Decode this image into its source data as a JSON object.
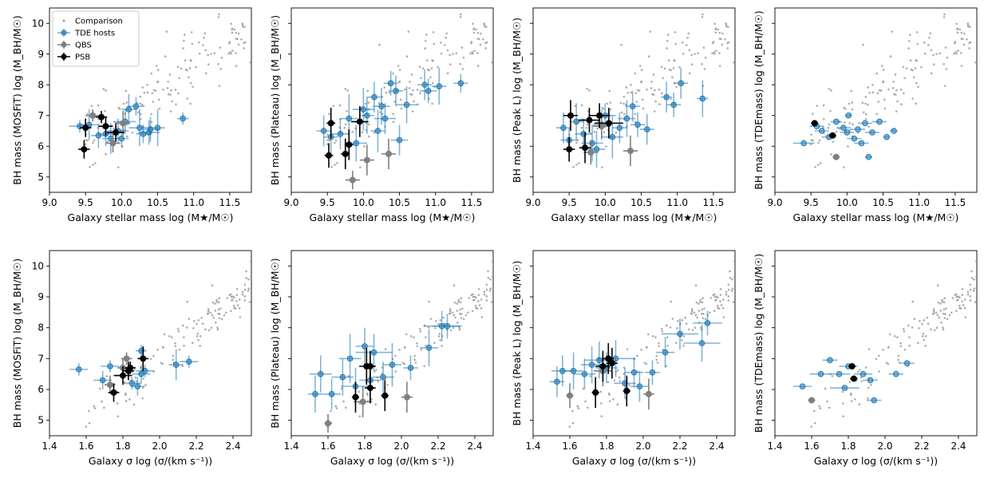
{
  "colors": {
    "comparison": "#999999",
    "tde": "#1f77b4",
    "qbs": "#808080",
    "psb": "#000000"
  },
  "legend": {
    "comparison": "Comparison",
    "tde": "TDE hosts",
    "qbs": "QBS",
    "psb": "PSB"
  },
  "axes": {
    "xlabel_mass": "Galaxy stellar mass log (M★/M☉)",
    "xlabel_sigma": "Galaxy σ log (σ/(km s⁻¹))",
    "ylabel_left": [
      "BH mass (MOSFiT) log (M_BH/M☉)",
      "BH mass (Plateau) log (M_BH/M☉)",
      "BH mass (Peak L) log (M_BH/M☉)",
      "BH mass (TDEmass) log (M_BH/M☉)"
    ]
  },
  "chart_data": [
    {
      "type": "scatter",
      "panel": "top-1",
      "xkey": "mass",
      "xlim": [
        9.0,
        11.8
      ],
      "ylim": [
        4.5,
        10.5
      ],
      "xticks": [
        "9.0",
        "9.5",
        "10.0",
        "10.5",
        "11.0",
        "11.5"
      ],
      "yticks": [
        "5",
        "6",
        "7",
        "8",
        "9",
        "10"
      ],
      "xlabel": "Galaxy stellar mass log (M★/M☉)",
      "ylabel": "BH mass (MOSFiT) log (M_BH/M☉)",
      "legend": "top-left",
      "tde": [
        [
          9.42,
          6.65,
          0.15,
          0.2
        ],
        [
          9.55,
          6.7,
          0.12,
          0.5
        ],
        [
          9.68,
          6.35,
          0.1,
          0.4
        ],
        [
          9.85,
          6.25,
          0.12,
          0.5
        ],
        [
          9.95,
          6.5,
          0.15,
          0.4
        ],
        [
          10.0,
          6.25,
          0.1,
          0.3
        ],
        [
          10.05,
          6.8,
          0.15,
          0.4
        ],
        [
          10.1,
          7.2,
          0.1,
          0.5
        ],
        [
          10.2,
          7.3,
          0.12,
          0.3
        ],
        [
          10.25,
          6.6,
          0.15,
          0.6
        ],
        [
          10.3,
          6.4,
          0.1,
          0.3
        ],
        [
          10.4,
          6.55,
          0.12,
          0.4
        ],
        [
          10.5,
          6.6,
          0.1,
          0.6
        ],
        [
          10.85,
          6.9,
          0.08,
          0.2
        ],
        [
          10.38,
          6.45,
          0.15,
          0.4
        ],
        [
          9.78,
          6.4,
          0.1,
          0.4
        ]
      ],
      "qbs": [
        [
          9.6,
          7.0,
          0.1,
          0.2
        ],
        [
          10.02,
          6.75,
          0.1,
          0.4
        ],
        [
          9.88,
          6.1,
          0.1,
          0.3
        ]
      ],
      "psb": [
        [
          9.5,
          6.6,
          0.08,
          0.3
        ],
        [
          9.48,
          5.9,
          0.08,
          0.3
        ],
        [
          9.72,
          6.95,
          0.08,
          0.2
        ],
        [
          9.78,
          6.65,
          0.1,
          0.3
        ],
        [
          9.92,
          6.45,
          0.12,
          0.3
        ]
      ]
    },
    {
      "type": "scatter",
      "panel": "top-2",
      "xkey": "mass",
      "xlim": [
        9.0,
        11.8
      ],
      "ylim": [
        4.5,
        10.5
      ],
      "xticks": [
        "9.0",
        "9.5",
        "10.0",
        "10.5",
        "11.0",
        "11.5"
      ],
      "yticks": [],
      "xlabel": "Galaxy stellar mass log (M★/M☉)",
      "ylabel": "BH mass (Plateau) log (M_BH/M☉)",
      "tde": [
        [
          9.45,
          6.5,
          0.1,
          0.5
        ],
        [
          9.55,
          6.3,
          0.1,
          0.6
        ],
        [
          9.68,
          6.4,
          0.12,
          0.5
        ],
        [
          9.8,
          6.9,
          0.12,
          0.8
        ],
        [
          9.9,
          6.1,
          0.15,
          0.6
        ],
        [
          10.0,
          7.2,
          0.15,
          0.7
        ],
        [
          10.05,
          7.0,
          0.1,
          0.6
        ],
        [
          10.15,
          7.6,
          0.1,
          0.5
        ],
        [
          10.25,
          7.3,
          0.12,
          0.6
        ],
        [
          10.3,
          6.9,
          0.15,
          0.5
        ],
        [
          10.38,
          8.05,
          0.1,
          0.4
        ],
        [
          10.45,
          7.8,
          0.1,
          0.5
        ],
        [
          10.6,
          7.35,
          0.15,
          0.6
        ],
        [
          10.85,
          8.0,
          0.1,
          0.5
        ],
        [
          10.9,
          7.8,
          0.12,
          0.4
        ],
        [
          11.05,
          7.95,
          0.1,
          0.6
        ],
        [
          11.35,
          8.05,
          0.1,
          0.3
        ],
        [
          10.5,
          6.2,
          0.12,
          0.5
        ],
        [
          10.2,
          6.5,
          0.1,
          0.7
        ]
      ],
      "qbs": [
        [
          9.85,
          4.9,
          0.1,
          0.3
        ],
        [
          10.05,
          5.55,
          0.1,
          0.5
        ],
        [
          10.35,
          5.75,
          0.1,
          0.5
        ]
      ],
      "psb": [
        [
          9.55,
          6.75,
          0.06,
          0.5
        ],
        [
          9.52,
          5.7,
          0.06,
          0.4
        ],
        [
          9.75,
          5.75,
          0.06,
          0.5
        ],
        [
          9.8,
          6.05,
          0.06,
          0.5
        ],
        [
          9.95,
          6.8,
          0.12,
          0.5
        ]
      ]
    },
    {
      "type": "scatter",
      "panel": "top-3",
      "xkey": "mass",
      "xlim": [
        9.0,
        11.8
      ],
      "ylim": [
        4.5,
        10.5
      ],
      "xticks": [
        "9.0",
        "9.5",
        "10.0",
        "10.5",
        "11.0",
        "11.5"
      ],
      "yticks": [],
      "xlabel": "Galaxy stellar mass log (M★/M☉)",
      "ylabel": "BH mass (Peak L) log (M_BH/M☉)",
      "tde": [
        [
          9.42,
          6.6,
          0.1,
          0.5
        ],
        [
          9.5,
          6.2,
          0.12,
          0.4
        ],
        [
          9.6,
          6.8,
          0.1,
          0.6
        ],
        [
          9.7,
          6.4,
          0.12,
          0.5
        ],
        [
          9.82,
          6.1,
          0.15,
          0.6
        ],
        [
          9.95,
          6.7,
          0.12,
          0.5
        ],
        [
          10.1,
          6.3,
          0.15,
          0.7
        ],
        [
          10.2,
          6.6,
          0.1,
          0.5
        ],
        [
          10.3,
          6.9,
          0.12,
          0.6
        ],
        [
          10.38,
          7.3,
          0.1,
          0.5
        ],
        [
          10.45,
          6.7,
          0.1,
          0.4
        ],
        [
          10.58,
          6.55,
          0.1,
          0.5
        ],
        [
          10.85,
          7.6,
          0.08,
          0.5
        ],
        [
          10.95,
          7.35,
          0.1,
          0.4
        ],
        [
          11.05,
          8.05,
          0.1,
          0.5
        ],
        [
          11.35,
          7.55,
          0.08,
          0.6
        ],
        [
          10.0,
          7.0,
          0.15,
          0.4
        ],
        [
          9.88,
          5.9,
          0.12,
          0.6
        ]
      ],
      "qbs": [
        [
          9.8,
          5.8,
          0.1,
          0.4
        ],
        [
          9.95,
          6.65,
          0.12,
          0.4
        ],
        [
          10.35,
          5.85,
          0.1,
          0.5
        ]
      ],
      "psb": [
        [
          9.52,
          7.0,
          0.1,
          0.5
        ],
        [
          9.5,
          5.9,
          0.08,
          0.4
        ],
        [
          9.72,
          5.95,
          0.08,
          0.5
        ],
        [
          9.78,
          6.85,
          0.15,
          0.4
        ],
        [
          9.92,
          7.0,
          0.15,
          0.4
        ],
        [
          10.05,
          6.75,
          0.2,
          0.5
        ]
      ]
    },
    {
      "type": "scatter",
      "panel": "top-4",
      "xkey": "mass",
      "xlim": [
        9.0,
        11.8
      ],
      "ylim": [
        4.5,
        10.5
      ],
      "xticks": [
        "9.0",
        "9.5",
        "10.0",
        "10.5",
        "11.0",
        "11.5"
      ],
      "yticks": [],
      "xlabel": "Galaxy stellar mass log (M★/M☉)",
      "ylabel": "BH mass (TDEmass) log (M_BH/M☉)",
      "tde": [
        [
          9.4,
          6.1,
          0.15,
          0
        ],
        [
          9.58,
          6.65,
          0.1,
          0
        ],
        [
          9.65,
          6.5,
          0.1,
          0
        ],
        [
          9.75,
          6.3,
          0.1,
          0
        ],
        [
          9.85,
          6.8,
          0.08,
          0
        ],
        [
          9.95,
          6.6,
          0.1,
          0
        ],
        [
          10.02,
          7.0,
          0.05,
          0
        ],
        [
          10.1,
          6.25,
          0.1,
          0
        ],
        [
          10.15,
          6.55,
          0.1,
          0
        ],
        [
          10.2,
          6.1,
          0.1,
          0
        ],
        [
          10.25,
          6.75,
          0.1,
          0
        ],
        [
          10.35,
          6.45,
          0.1,
          0
        ],
        [
          10.45,
          6.8,
          0.1,
          0
        ],
        [
          10.55,
          6.3,
          0.05,
          0
        ],
        [
          10.65,
          6.5,
          0.05,
          0
        ],
        [
          10.3,
          5.65,
          0.05,
          0
        ],
        [
          10.0,
          6.45,
          0.1,
          0
        ]
      ],
      "qbs": [
        [
          9.85,
          5.65,
          0.05,
          0
        ]
      ],
      "psb": [
        [
          9.55,
          6.75,
          0.05,
          0
        ],
        [
          9.8,
          6.35,
          0.05,
          0
        ]
      ]
    },
    {
      "type": "scatter",
      "panel": "bottom-1",
      "xkey": "sigma",
      "xlim": [
        1.4,
        2.5
      ],
      "ylim": [
        4.5,
        10.5
      ],
      "xticks": [
        "1.4",
        "1.6",
        "1.8",
        "2.0",
        "2.2",
        "2.4"
      ],
      "yticks": [
        "5",
        "6",
        "7",
        "8",
        "9",
        "10"
      ],
      "xlabel": "Galaxy σ log (σ/(km s⁻¹))",
      "ylabel": "BH mass (MOSFiT) log (M_BH/M☉)",
      "tde": [
        [
          1.56,
          6.65,
          0.05,
          0.2
        ],
        [
          1.69,
          6.3,
          0.05,
          0.3
        ],
        [
          1.73,
          6.75,
          0.05,
          0.2
        ],
        [
          1.85,
          6.2,
          0.05,
          0.2
        ],
        [
          1.9,
          7.25,
          0.03,
          0.2
        ],
        [
          1.9,
          6.5,
          0.05,
          0.3
        ],
        [
          1.92,
          6.6,
          0.05,
          0.2
        ],
        [
          2.09,
          6.8,
          0.04,
          0.5
        ],
        [
          2.16,
          6.9,
          0.05,
          0.2
        ],
        [
          1.88,
          6.1,
          0.04,
          0.3
        ]
      ],
      "qbs": [
        [
          1.73,
          6.15,
          0.03,
          0.3
        ],
        [
          1.8,
          6.7,
          0.03,
          0.3
        ],
        [
          1.82,
          7.0,
          0.03,
          0.2
        ]
      ],
      "psb": [
        [
          1.75,
          5.9,
          0.03,
          0.3
        ],
        [
          1.8,
          6.45,
          0.05,
          0.3
        ],
        [
          1.83,
          6.6,
          0.03,
          0.3
        ],
        [
          1.84,
          6.7,
          0.03,
          0.2
        ],
        [
          1.91,
          7.0,
          0.03,
          0.4
        ]
      ]
    },
    {
      "type": "scatter",
      "panel": "bottom-2",
      "xkey": "sigma",
      "xlim": [
        1.4,
        2.5
      ],
      "ylim": [
        4.5,
        10.5
      ],
      "xticks": [
        "1.4",
        "1.6",
        "1.8",
        "2.0",
        "2.2",
        "2.4"
      ],
      "yticks": [],
      "xlabel": "Galaxy σ log (σ/(km s⁻¹))",
      "ylabel": "BH mass (Plateau) log (M_BH/M☉)",
      "tde": [
        [
          1.53,
          5.85,
          0.04,
          0.6
        ],
        [
          1.56,
          6.5,
          0.06,
          0.6
        ],
        [
          1.62,
          5.85,
          0.05,
          0.5
        ],
        [
          1.68,
          6.4,
          0.06,
          0.6
        ],
        [
          1.72,
          7.0,
          0.06,
          0.8
        ],
        [
          1.75,
          6.1,
          0.08,
          0.6
        ],
        [
          1.8,
          7.4,
          0.05,
          0.6
        ],
        [
          1.85,
          7.2,
          0.1,
          0.6
        ],
        [
          1.9,
          6.4,
          0.06,
          0.5
        ],
        [
          1.95,
          6.8,
          0.05,
          0.7
        ],
        [
          2.05,
          6.7,
          0.04,
          0.4
        ],
        [
          2.15,
          7.35,
          0.05,
          0.6
        ],
        [
          2.22,
          8.05,
          0.1,
          0.5
        ],
        [
          2.25,
          8.05,
          0.08,
          0.4
        ],
        [
          1.83,
          6.3,
          0.06,
          0.6
        ]
      ],
      "qbs": [
        [
          1.6,
          4.9,
          0.02,
          0.3
        ],
        [
          1.79,
          5.6,
          0.05,
          0.5
        ],
        [
          2.03,
          5.75,
          0.03,
          0.5
        ]
      ],
      "psb": [
        [
          1.75,
          5.75,
          0.02,
          0.5
        ],
        [
          1.81,
          6.75,
          0.04,
          0.6
        ],
        [
          1.83,
          6.05,
          0.03,
          0.5
        ],
        [
          1.83,
          6.75,
          0.03,
          0.5
        ],
        [
          1.91,
          5.8,
          0.02,
          0.5
        ]
      ]
    },
    {
      "type": "scatter",
      "panel": "bottom-3",
      "xkey": "sigma",
      "xlim": [
        1.4,
        2.5
      ],
      "ylim": [
        4.5,
        10.5
      ],
      "xticks": [
        "1.4",
        "1.6",
        "1.8",
        "2.0",
        "2.2",
        "2.4"
      ],
      "yticks": [],
      "xlabel": "Galaxy σ log (σ/(km s⁻¹))",
      "ylabel": "BH mass (Peak L) log (M_BH/M☉)",
      "tde": [
        [
          1.53,
          6.25,
          0.04,
          0.5
        ],
        [
          1.56,
          6.6,
          0.06,
          0.5
        ],
        [
          1.62,
          6.6,
          0.05,
          0.6
        ],
        [
          1.68,
          6.5,
          0.06,
          0.5
        ],
        [
          1.72,
          6.8,
          0.06,
          0.6
        ],
        [
          1.76,
          6.95,
          0.08,
          0.6
        ],
        [
          1.8,
          6.7,
          0.06,
          0.5
        ],
        [
          1.85,
          7.0,
          0.1,
          0.6
        ],
        [
          1.9,
          6.2,
          0.06,
          0.5
        ],
        [
          1.95,
          6.55,
          0.05,
          0.5
        ],
        [
          2.05,
          6.55,
          0.04,
          0.4
        ],
        [
          2.12,
          7.2,
          0.05,
          0.5
        ],
        [
          2.2,
          7.8,
          0.1,
          0.5
        ],
        [
          2.35,
          8.15,
          0.08,
          0.4
        ],
        [
          2.32,
          7.5,
          0.1,
          0.6
        ],
        [
          1.98,
          6.1,
          0.05,
          0.5
        ]
      ],
      "qbs": [
        [
          1.6,
          5.8,
          0.02,
          0.4
        ],
        [
          1.78,
          6.6,
          0.05,
          0.5
        ],
        [
          2.03,
          5.85,
          0.03,
          0.5
        ]
      ],
      "psb": [
        [
          1.74,
          5.9,
          0.02,
          0.5
        ],
        [
          1.78,
          6.75,
          0.04,
          0.5
        ],
        [
          1.81,
          7.0,
          0.03,
          0.5
        ],
        [
          1.83,
          6.85,
          0.03,
          0.5
        ],
        [
          1.91,
          5.95,
          0.02,
          0.5
        ]
      ]
    },
    {
      "type": "scatter",
      "panel": "bottom-4",
      "xkey": "sigma",
      "xlim": [
        1.4,
        2.5
      ],
      "ylim": [
        4.5,
        10.5
      ],
      "xticks": [
        "1.4",
        "1.6",
        "1.8",
        "2.0",
        "2.2",
        "2.4"
      ],
      "yticks": [],
      "xlabel": "Galaxy σ log (σ/(km s⁻¹))",
      "ylabel": "BH mass (TDEmass) log (M_BH/M☉)",
      "tde": [
        [
          1.55,
          6.1,
          0.05,
          0
        ],
        [
          1.65,
          6.5,
          0.06,
          0
        ],
        [
          1.7,
          6.95,
          0.04,
          0
        ],
        [
          1.75,
          6.5,
          0.06,
          0
        ],
        [
          1.78,
          6.05,
          0.08,
          0
        ],
        [
          1.8,
          6.75,
          0.05,
          0
        ],
        [
          1.88,
          6.5,
          0.05,
          0
        ],
        [
          1.92,
          6.3,
          0.04,
          0
        ],
        [
          1.94,
          5.65,
          0.04,
          0
        ],
        [
          2.06,
          6.5,
          0.04,
          0
        ],
        [
          2.12,
          6.85,
          0.04,
          0
        ]
      ],
      "qbs": [
        [
          1.6,
          5.65,
          0.02,
          0
        ]
      ],
      "psb": [
        [
          1.82,
          6.75,
          0.02,
          0
        ],
        [
          1.83,
          6.35,
          0.02,
          0
        ]
      ]
    }
  ]
}
